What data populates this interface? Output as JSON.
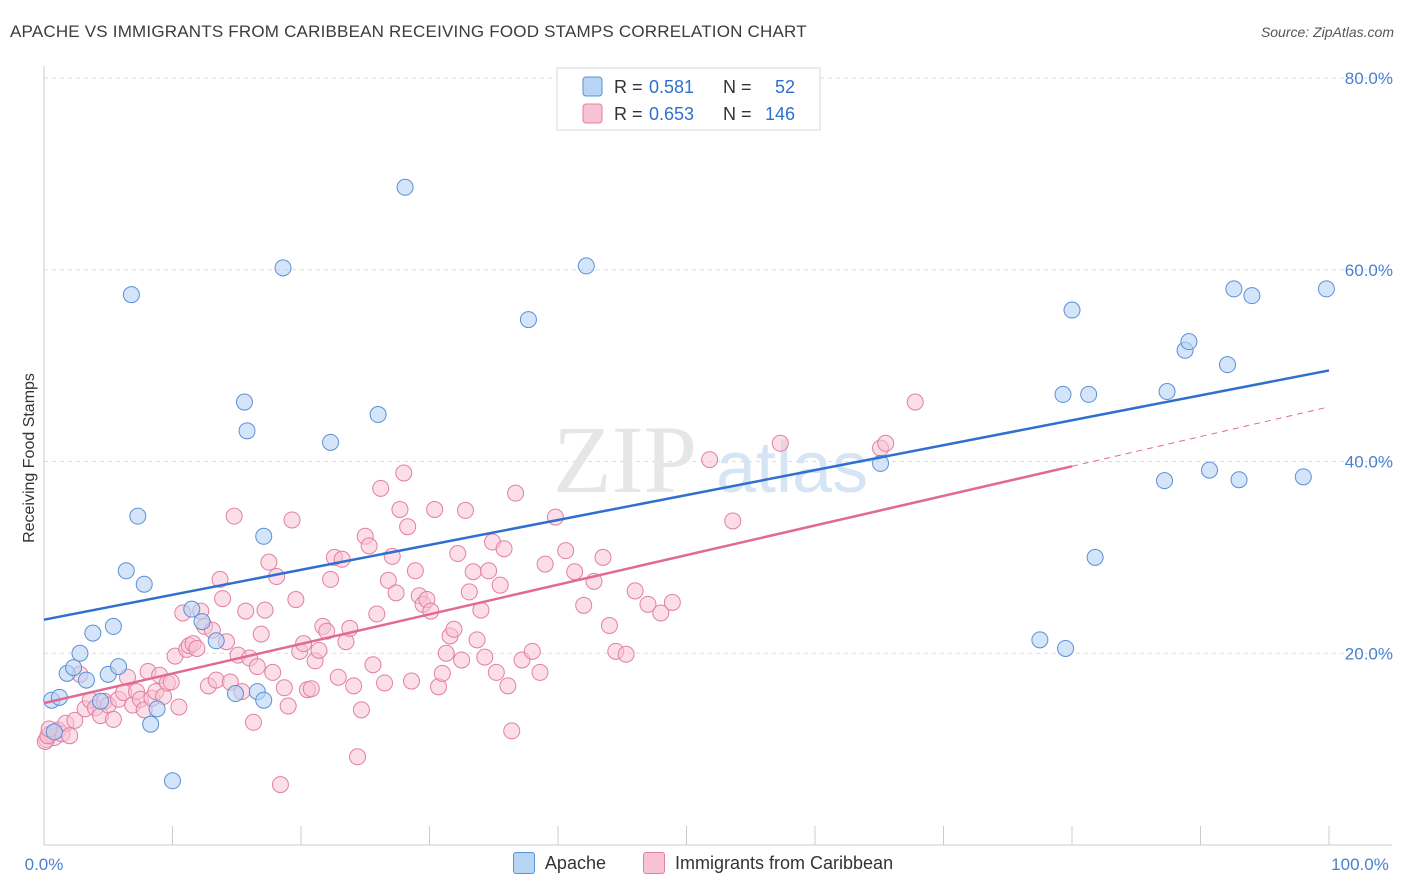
{
  "title": "APACHE VS IMMIGRANTS FROM CARIBBEAN RECEIVING FOOD STAMPS CORRELATION CHART",
  "source": "Source: ZipAtlas.com",
  "watermark": {
    "zip": "ZIP",
    "atlas": "atlas"
  },
  "colors": {
    "apache_fill": "#b8d4f5",
    "apache_stroke": "#5b8fd6",
    "apache_line": "#2f6fd0",
    "carib_fill": "#f7c3d3",
    "carib_stroke": "#e37fa2",
    "carib_line": "#e06a93",
    "axis_text": "#4a7fcf",
    "grid": "#dddddd"
  },
  "legend_top": {
    "rows": [
      {
        "series": "Apache",
        "r_label": "R =",
        "r_value": "0.581",
        "n_label": "N =",
        "n_value": "52"
      },
      {
        "series": "Immigrants from Caribbean",
        "r_label": "R =",
        "r_value": "0.653",
        "n_label": "N =",
        "n_value": "146"
      }
    ]
  },
  "legend_bottom": [
    "Apache",
    "Immigrants from Caribbean"
  ],
  "chart_data": {
    "type": "scatter",
    "title": "APACHE VS IMMIGRANTS FROM CARIBBEAN RECEIVING FOOD STAMPS CORRELATION CHART",
    "xlabel": "",
    "ylabel": "Receiving Food Stamps",
    "xlim": [
      0,
      100
    ],
    "ylim": [
      0,
      80
    ],
    "x_ticks": [
      "0.0%",
      "100.0%"
    ],
    "y_ticks": [
      {
        "value": 20,
        "label": "20.0%"
      },
      {
        "value": 40,
        "label": "40.0%"
      },
      {
        "value": 60,
        "label": "60.0%"
      },
      {
        "value": 80,
        "label": "80.0%"
      }
    ],
    "grid": true,
    "legend_position": "top-center",
    "series": [
      {
        "name": "Apache",
        "r": 0.581,
        "n": 52,
        "trend": {
          "x": [
            0,
            100
          ],
          "y": [
            23.5,
            49.5
          ]
        },
        "points": [
          [
            0.6,
            15.1
          ],
          [
            1.2,
            15.4
          ],
          [
            1.8,
            17.9
          ],
          [
            2.3,
            18.5
          ],
          [
            2.8,
            20.0
          ],
          [
            3.3,
            17.2
          ],
          [
            3.8,
            22.1
          ],
          [
            4.4,
            15.0
          ],
          [
            5.0,
            17.8
          ],
          [
            5.4,
            22.8
          ],
          [
            5.8,
            18.6
          ],
          [
            6.4,
            28.6
          ],
          [
            6.8,
            57.4
          ],
          [
            7.3,
            34.3
          ],
          [
            7.8,
            27.2
          ],
          [
            8.3,
            12.6
          ],
          [
            8.8,
            14.2
          ],
          [
            10.0,
            6.7
          ],
          [
            11.5,
            24.6
          ],
          [
            12.3,
            23.3
          ],
          [
            13.4,
            21.3
          ],
          [
            14.9,
            15.8
          ],
          [
            15.6,
            46.2
          ],
          [
            15.8,
            43.2
          ],
          [
            16.6,
            16.0
          ],
          [
            17.1,
            15.1
          ],
          [
            18.6,
            60.2
          ],
          [
            17.1,
            32.2
          ],
          [
            22.3,
            42.0
          ],
          [
            26.0,
            44.9
          ],
          [
            28.1,
            68.6
          ],
          [
            37.7,
            54.8
          ],
          [
            42.2,
            60.4
          ],
          [
            65.1,
            39.8
          ],
          [
            77.5,
            21.4
          ],
          [
            79.3,
            47.0
          ],
          [
            79.5,
            20.5
          ],
          [
            80.0,
            55.8
          ],
          [
            81.3,
            47.0
          ],
          [
            81.8,
            30.0
          ],
          [
            87.2,
            38.0
          ],
          [
            87.4,
            47.3
          ],
          [
            88.8,
            51.6
          ],
          [
            89.1,
            52.5
          ],
          [
            90.7,
            39.1
          ],
          [
            92.1,
            50.1
          ],
          [
            92.6,
            58.0
          ],
          [
            93.0,
            38.1
          ],
          [
            94.0,
            57.3
          ],
          [
            98.0,
            38.4
          ],
          [
            99.8,
            58.0
          ],
          [
            0.8,
            11.8
          ]
        ]
      },
      {
        "name": "Immigrants from Caribbean",
        "r": 0.653,
        "n": 146,
        "trend": {
          "x": [
            0,
            80
          ],
          "y": [
            14.8,
            39.5
          ]
        },
        "trend_dashed": {
          "x": [
            80,
            100
          ],
          "y": [
            39.5,
            45.7
          ]
        },
        "points": [
          [
            0.2,
            11.0
          ],
          [
            0.5,
            11.6
          ],
          [
            0.8,
            11.2
          ],
          [
            1.1,
            12.0
          ],
          [
            1.4,
            11.6
          ],
          [
            1.7,
            12.7
          ],
          [
            2.0,
            11.4
          ],
          [
            2.4,
            13.0
          ],
          [
            2.8,
            17.8
          ],
          [
            3.2,
            14.2
          ],
          [
            3.6,
            15.1
          ],
          [
            4.0,
            14.3
          ],
          [
            4.4,
            13.5
          ],
          [
            4.7,
            15.0
          ],
          [
            5.0,
            14.6
          ],
          [
            5.4,
            13.1
          ],
          [
            5.8,
            15.2
          ],
          [
            6.2,
            15.9
          ],
          [
            6.5,
            17.5
          ],
          [
            6.9,
            14.6
          ],
          [
            7.2,
            16.0
          ],
          [
            7.5,
            15.2
          ],
          [
            7.8,
            14.1
          ],
          [
            8.1,
            18.1
          ],
          [
            8.4,
            15.3
          ],
          [
            8.7,
            16.0
          ],
          [
            9.0,
            17.7
          ],
          [
            9.3,
            15.5
          ],
          [
            9.6,
            16.9
          ],
          [
            9.9,
            17.0
          ],
          [
            10.2,
            19.7
          ],
          [
            10.5,
            14.4
          ],
          [
            10.8,
            24.2
          ],
          [
            11.1,
            20.4
          ],
          [
            11.3,
            20.8
          ],
          [
            11.6,
            21.0
          ],
          [
            11.9,
            20.5
          ],
          [
            12.2,
            24.4
          ],
          [
            12.5,
            22.8
          ],
          [
            12.8,
            16.6
          ],
          [
            13.1,
            22.4
          ],
          [
            13.4,
            17.2
          ],
          [
            13.7,
            27.7
          ],
          [
            13.9,
            25.7
          ],
          [
            14.2,
            21.2
          ],
          [
            14.5,
            17.0
          ],
          [
            14.8,
            34.3
          ],
          [
            15.1,
            19.8
          ],
          [
            15.4,
            16.0
          ],
          [
            15.7,
            24.4
          ],
          [
            16.0,
            19.5
          ],
          [
            16.3,
            12.8
          ],
          [
            16.6,
            18.6
          ],
          [
            16.9,
            22.0
          ],
          [
            17.2,
            24.5
          ],
          [
            17.5,
            29.5
          ],
          [
            17.8,
            18.0
          ],
          [
            18.1,
            28.0
          ],
          [
            18.4,
            6.3
          ],
          [
            18.7,
            16.4
          ],
          [
            19.0,
            14.5
          ],
          [
            19.3,
            33.9
          ],
          [
            19.6,
            25.6
          ],
          [
            19.9,
            20.2
          ],
          [
            20.2,
            21.0
          ],
          [
            20.5,
            16.2
          ],
          [
            20.8,
            16.3
          ],
          [
            21.1,
            19.2
          ],
          [
            21.4,
            20.3
          ],
          [
            21.7,
            22.8
          ],
          [
            22.0,
            22.3
          ],
          [
            22.3,
            27.7
          ],
          [
            22.6,
            30.0
          ],
          [
            22.9,
            17.5
          ],
          [
            23.2,
            29.8
          ],
          [
            23.5,
            21.2
          ],
          [
            23.8,
            22.6
          ],
          [
            24.1,
            16.6
          ],
          [
            24.4,
            9.2
          ],
          [
            24.7,
            14.1
          ],
          [
            25.0,
            32.2
          ],
          [
            25.3,
            31.2
          ],
          [
            25.6,
            18.8
          ],
          [
            25.9,
            24.1
          ],
          [
            26.2,
            37.2
          ],
          [
            26.5,
            16.9
          ],
          [
            26.8,
            27.6
          ],
          [
            27.1,
            30.1
          ],
          [
            27.4,
            26.3
          ],
          [
            27.7,
            35.0
          ],
          [
            28.0,
            38.8
          ],
          [
            28.3,
            33.2
          ],
          [
            28.6,
            17.1
          ],
          [
            28.9,
            28.6
          ],
          [
            29.2,
            26.0
          ],
          [
            29.5,
            25.1
          ],
          [
            29.8,
            25.6
          ],
          [
            30.1,
            24.4
          ],
          [
            30.4,
            35.0
          ],
          [
            30.7,
            16.5
          ],
          [
            31.0,
            17.9
          ],
          [
            31.3,
            20.0
          ],
          [
            31.6,
            21.8
          ],
          [
            31.9,
            22.5
          ],
          [
            32.2,
            30.4
          ],
          [
            32.5,
            19.3
          ],
          [
            32.8,
            34.9
          ],
          [
            33.1,
            26.4
          ],
          [
            33.4,
            28.5
          ],
          [
            33.7,
            21.4
          ],
          [
            34.0,
            24.5
          ],
          [
            34.3,
            19.6
          ],
          [
            34.6,
            28.6
          ],
          [
            34.9,
            31.6
          ],
          [
            35.2,
            18.0
          ],
          [
            35.5,
            27.1
          ],
          [
            35.8,
            30.9
          ],
          [
            36.1,
            16.6
          ],
          [
            36.4,
            11.9
          ],
          [
            36.7,
            36.7
          ],
          [
            37.2,
            19.3
          ],
          [
            38.0,
            20.2
          ],
          [
            38.6,
            18.0
          ],
          [
            39.0,
            29.3
          ],
          [
            39.8,
            34.2
          ],
          [
            40.6,
            30.7
          ],
          [
            41.3,
            28.5
          ],
          [
            42.0,
            25.0
          ],
          [
            42.8,
            27.5
          ],
          [
            43.5,
            30.0
          ],
          [
            44.0,
            22.9
          ],
          [
            44.5,
            20.2
          ],
          [
            45.3,
            19.9
          ],
          [
            46.0,
            26.5
          ],
          [
            47.0,
            25.1
          ],
          [
            48.0,
            24.2
          ],
          [
            48.9,
            25.3
          ],
          [
            51.8,
            40.2
          ],
          [
            53.6,
            33.8
          ],
          [
            57.3,
            41.9
          ],
          [
            65.1,
            41.4
          ],
          [
            65.5,
            41.9
          ],
          [
            67.8,
            46.2
          ],
          [
            0.1,
            10.8
          ],
          [
            0.3,
            11.4
          ],
          [
            0.4,
            12.1
          ]
        ]
      }
    ]
  }
}
